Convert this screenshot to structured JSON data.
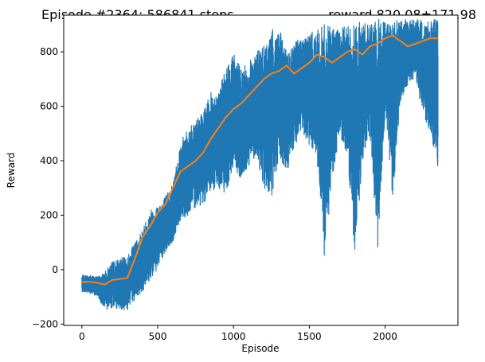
{
  "chart_data": {
    "type": "line",
    "title_left": "Episode #2364: 586841 steps,",
    "title_right": "reward 820.08±171.98",
    "xlabel": "Episode",
    "ylabel": "Reward",
    "xlim": [
      -120,
      2480
    ],
    "ylim": [
      -205,
      935
    ],
    "xticks": [
      0,
      500,
      1000,
      1500,
      2000
    ],
    "yticks": [
      -200,
      0,
      200,
      400,
      600,
      800
    ],
    "grid": false,
    "legend": "none",
    "colors": {
      "raw": "#1f77b4",
      "smoothed": "#ff7f0e",
      "axes": "#000000",
      "background": "#ffffff"
    },
    "series": [
      {
        "key": "raw",
        "x": [
          0,
          50,
          100,
          150,
          200,
          250,
          300,
          350,
          400,
          450,
          500,
          550,
          600,
          650,
          700,
          750,
          800,
          850,
          900,
          950,
          1000,
          1050,
          1100,
          1150,
          1200,
          1250,
          1300,
          1350,
          1400,
          1450,
          1500,
          1550,
          1600,
          1650,
          1700,
          1750,
          1800,
          1850,
          1900,
          1950,
          2000,
          2050,
          2100,
          2150,
          2200,
          2250,
          2300,
          2350
        ],
        "lower": [
          -80,
          -90,
          -95,
          -150,
          -140,
          -145,
          -150,
          -110,
          -80,
          -40,
          0,
          60,
          100,
          180,
          200,
          230,
          240,
          280,
          300,
          280,
          380,
          320,
          380,
          420,
          300,
          250,
          400,
          350,
          450,
          500,
          450,
          400,
          20,
          330,
          500,
          420,
          40,
          400,
          500,
          50,
          580,
          250,
          620,
          680,
          700,
          560,
          500,
          360
        ],
        "upper": [
          -20,
          -20,
          -25,
          -10,
          30,
          40,
          50,
          100,
          150,
          220,
          240,
          270,
          320,
          470,
          520,
          550,
          580,
          650,
          660,
          740,
          800,
          740,
          760,
          810,
          820,
          880,
          890,
          800,
          840,
          860,
          870,
          880,
          900,
          890,
          880,
          900,
          910,
          910,
          910,
          920,
          920,
          920,
          915,
          920,
          920,
          915,
          920,
          920
        ]
      },
      {
        "key": "smoothed",
        "x": [
          0,
          50,
          100,
          150,
          200,
          250,
          300,
          350,
          400,
          450,
          500,
          550,
          600,
          650,
          700,
          750,
          800,
          850,
          900,
          950,
          1000,
          1050,
          1100,
          1150,
          1200,
          1250,
          1300,
          1350,
          1400,
          1450,
          1500,
          1550,
          1600,
          1650,
          1700,
          1750,
          1800,
          1850,
          1900,
          1950,
          2000,
          2050,
          2100,
          2150,
          2200,
          2250,
          2300,
          2350
        ],
        "y": [
          -45,
          -45,
          -48,
          -55,
          -38,
          -35,
          -30,
          40,
          120,
          160,
          210,
          240,
          300,
          360,
          380,
          400,
          430,
          480,
          520,
          560,
          590,
          610,
          640,
          670,
          700,
          720,
          730,
          750,
          720,
          740,
          760,
          790,
          780,
          760,
          780,
          800,
          810,
          790,
          820,
          830,
          850,
          860,
          840,
          820,
          830,
          840,
          850,
          850
        ]
      }
    ]
  }
}
